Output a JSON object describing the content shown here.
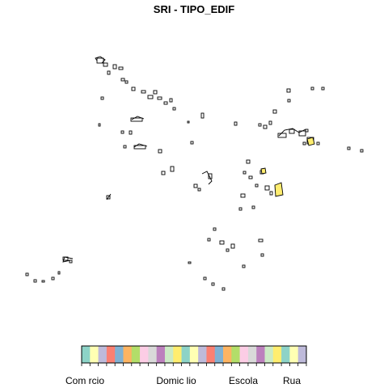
{
  "title": "SRI - TIPO_EDIF",
  "legend": {
    "colors": [
      "#8dd3c7",
      "#ffffb3",
      "#bebada",
      "#fb8072",
      "#80b1d3",
      "#fdb462",
      "#b3de69",
      "#fccde5",
      "#d9d9d9",
      "#bc80bd",
      "#ccebc5",
      "#ffed6f",
      "#8dd3c7",
      "#ffffb3",
      "#bebada",
      "#fb8072",
      "#80b1d3",
      "#fdb462",
      "#b3de69",
      "#fccde5",
      "#d9d9d9",
      "#bc80bd",
      "#ccebc5",
      "#ffed6f",
      "#8dd3c7",
      "#ffffb3",
      "#bebada"
    ],
    "labels": [
      "Com rcio",
      "Domic lio",
      "Escola",
      "Rua"
    ]
  }
}
